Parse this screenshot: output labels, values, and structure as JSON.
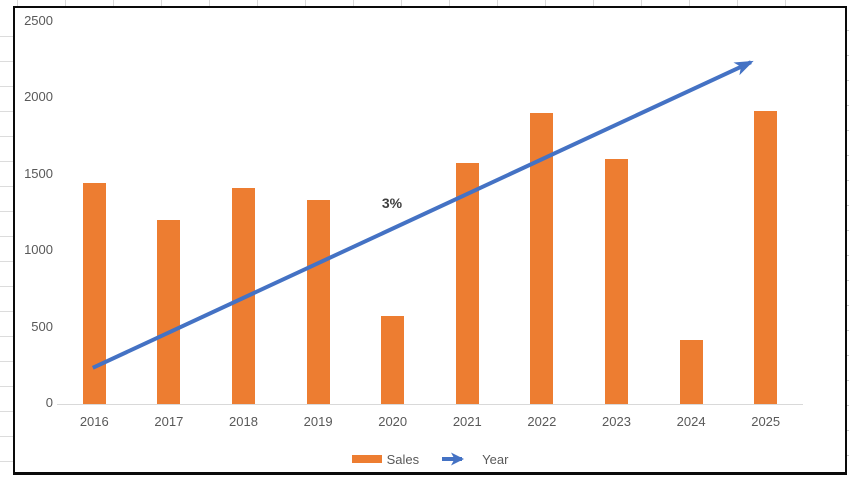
{
  "chart_data": {
    "type": "bar",
    "title": "",
    "categories": [
      "2016",
      "2017",
      "2018",
      "2019",
      "2020",
      "2021",
      "2022",
      "2023",
      "2024",
      "2025"
    ],
    "series": [
      {
        "name": "Sales",
        "type": "bar",
        "color": "#ED7D31",
        "values": [
          1440,
          1200,
          1410,
          1330,
          570,
          1570,
          1900,
          1600,
          410,
          1910
        ]
      },
      {
        "name": "Year",
        "type": "arrow-line",
        "color": "#4472C4",
        "from": {
          "x_slot": 0.48,
          "y_value": 230
        },
        "to": {
          "x_slot": 9.49,
          "y_value": 2270
        }
      }
    ],
    "annotation": {
      "text": "3%",
      "x_slot": 4.49,
      "y_value": 1300
    },
    "y_axis": {
      "min": 0,
      "max": 2500,
      "step": 500,
      "tick_labels": [
        "0",
        "500",
        "1000",
        "1500",
        "2000",
        "2500"
      ]
    },
    "x_axis": {
      "label": ""
    },
    "legend": {
      "position": "bottom",
      "items": [
        {
          "label": "Sales",
          "swatch": "bar"
        },
        {
          "label": "Year",
          "swatch": "arrow"
        }
      ]
    },
    "gridlines": false,
    "colors": {
      "axis_text": "#595959",
      "axis_line": "#D9D9D9",
      "annotation_text": "#404040",
      "border": "#000000"
    }
  }
}
